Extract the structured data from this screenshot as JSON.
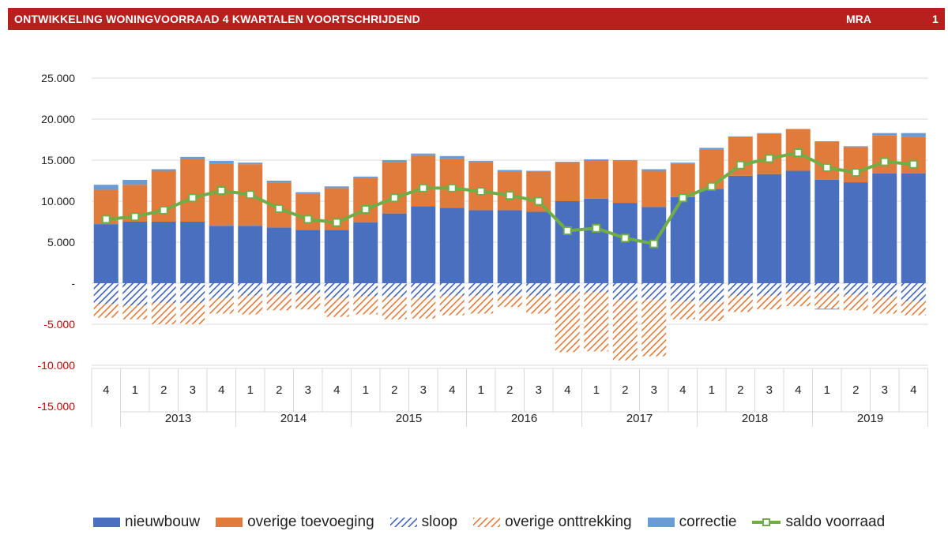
{
  "header": {
    "title": "ONTWIKKELING WONINGVOORRAAD 4 KWARTALEN VOORTSCHRIJDEND",
    "region": "MRA",
    "page": "1"
  },
  "colors": {
    "header_bg": "#b8201e",
    "nieuwbouw": "#4a6fbf",
    "overige_toevoeging": "#e07b3b",
    "sloop": "#3d62b8",
    "overige_onttrekking": "#e07b3b",
    "correctie": "#6a9bd4",
    "saldo": "#70ad47",
    "negative_tick": "#cc0000"
  },
  "chart_data": {
    "type": "bar",
    "stacked": true,
    "categories": [
      "4",
      "1",
      "2",
      "3",
      "4",
      "1",
      "2",
      "3",
      "4",
      "1",
      "2",
      "3",
      "4",
      "1",
      "2",
      "3",
      "4",
      "1",
      "2",
      "3",
      "4",
      "1",
      "2",
      "3",
      "4",
      "1",
      "2",
      "3",
      "4"
    ],
    "years": [
      {
        "label": "2013",
        "start": 1,
        "end": 4
      },
      {
        "label": "2014",
        "start": 5,
        "end": 8
      },
      {
        "label": "2015",
        "start": 9,
        "end": 12
      },
      {
        "label": "2016",
        "start": 13,
        "end": 16
      },
      {
        "label": "2017",
        "start": 17,
        "end": 20
      },
      {
        "label": "2018",
        "start": 21,
        "end": 24
      },
      {
        "label": "2019",
        "start": 25,
        "end": 28
      }
    ],
    "ylim": [
      -15000,
      25000
    ],
    "yticks": [
      25000,
      20000,
      15000,
      10000,
      5000,
      0,
      -5000,
      -10000,
      -15000
    ],
    "ytick_labels": [
      "25.000",
      "20.000",
      "15.000",
      "10.000",
      "5.000",
      "-",
      "-5.000",
      "-10.000",
      "-15.000"
    ],
    "grid": true,
    "legend_position": "bottom",
    "series": [
      {
        "name": "nieuwbouw",
        "kind": "bar",
        "values": [
          7200,
          7500,
          7500,
          7500,
          7000,
          7000,
          6800,
          6500,
          6500,
          7400,
          8500,
          9400,
          9200,
          8900,
          8900,
          8700,
          10000,
          10300,
          9800,
          9300,
          10500,
          11500,
          13100,
          13300,
          13700,
          12600,
          12300,
          13400,
          13400
        ]
      },
      {
        "name": "overige toevoeging",
        "kind": "bar",
        "values": [
          4200,
          4500,
          6200,
          7600,
          7600,
          7500,
          5500,
          4400,
          5100,
          5400,
          6300,
          6200,
          6000,
          5900,
          4700,
          4900,
          4700,
          4700,
          5100,
          4400,
          4100,
          4800,
          4700,
          4900,
          5100,
          4700,
          4300,
          4600,
          4400
        ]
      },
      {
        "name": "sloop",
        "kind": "bar",
        "values": [
          -2500,
          -2700,
          -2400,
          -2400,
          -1800,
          -1500,
          -1300,
          -1200,
          -1800,
          -1600,
          -1700,
          -1800,
          -1500,
          -1500,
          -1500,
          -1500,
          -1200,
          -1100,
          -2000,
          -2000,
          -2200,
          -2300,
          -1500,
          -1500,
          -1000,
          -1100,
          -1400,
          -1700,
          -2200
        ]
      },
      {
        "name": "overige onttrekking",
        "kind": "bar",
        "values": [
          -1700,
          -1700,
          -2600,
          -2600,
          -1900,
          -2300,
          -2000,
          -2000,
          -2300,
          -2200,
          -2700,
          -2500,
          -2400,
          -2200,
          -1400,
          -2200,
          -7200,
          -7200,
          -7400,
          -6900,
          -2200,
          -2300,
          -2000,
          -1700,
          -1800,
          -2000,
          -1900,
          -2000,
          -1700
        ]
      },
      {
        "name": "correctie",
        "kind": "bar",
        "values": [
          600,
          600,
          200,
          300,
          300,
          200,
          200,
          200,
          200,
          200,
          200,
          200,
          300,
          100,
          200,
          100,
          100,
          100,
          100,
          200,
          100,
          200,
          100,
          100,
          0,
          -100,
          100,
          300,
          500
        ]
      },
      {
        "name": "saldo voorraad",
        "kind": "line",
        "values": [
          7800,
          8100,
          8900,
          10400,
          11300,
          10800,
          9100,
          7800,
          7400,
          9000,
          10400,
          11600,
          11600,
          11200,
          10700,
          10000,
          6400,
          6700,
          5500,
          4800,
          10400,
          11800,
          14400,
          15200,
          15900,
          14100,
          13500,
          14800,
          14500
        ]
      }
    ]
  }
}
